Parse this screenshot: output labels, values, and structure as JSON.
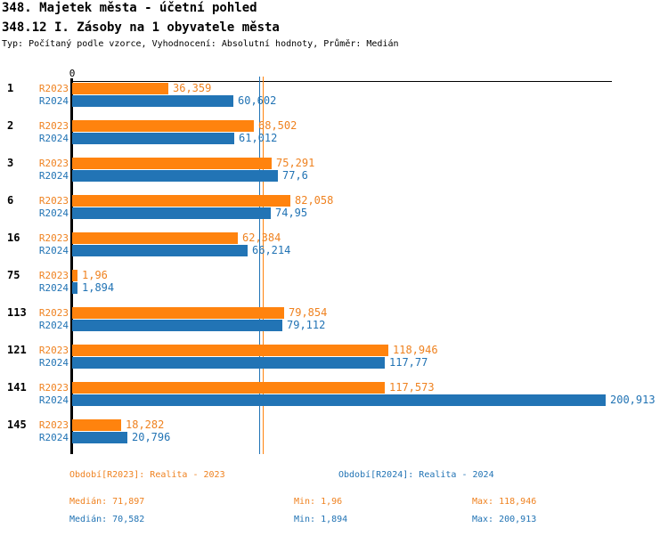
{
  "header": {
    "title": "348. Majetek města - účetní pohled",
    "subtitle": "348.12 I. Zásoby na 1 obyvatele města",
    "meta": "Typ: Počítaný podle vzorce, Vyhodnocení: Absolutní hodnoty, Průměr: Medián"
  },
  "colors": {
    "orange": "#FF830E",
    "blue": "#2274B5",
    "orange_text": "#EF8220",
    "blue_text": "#2173B4",
    "axis": "#000000"
  },
  "chart_data": {
    "type": "bar",
    "orientation": "horizontal",
    "axis_zero_label": "0",
    "xlim": [
      0,
      200.913
    ],
    "grid": false,
    "categories": [
      "1",
      "2",
      "3",
      "6",
      "16",
      "75",
      "113",
      "121",
      "141",
      "145"
    ],
    "series": [
      {
        "name": "R2023",
        "color_key": "orange",
        "values": [
          36.359,
          68.502,
          75.291,
          82.058,
          62.384,
          1.96,
          79.854,
          118.946,
          117.573,
          18.282
        ],
        "value_labels": [
          "36,359",
          "68,502",
          "75,291",
          "82,058",
          "62,384",
          "1,96",
          "79,854",
          "118,946",
          "117,573",
          "18,282"
        ]
      },
      {
        "name": "R2024",
        "color_key": "blue",
        "values": [
          60.602,
          61.012,
          77.6,
          74.95,
          66.214,
          1.894,
          79.112,
          117.77,
          200.913,
          20.796
        ],
        "value_labels": [
          "60,602",
          "61,012",
          "77,6",
          "74,95",
          "66,214",
          "1,894",
          "79,112",
          "117,77",
          "200,913",
          "20,796"
        ]
      }
    ],
    "reference_lines": [
      {
        "name": "median-2024",
        "value": 70.582,
        "color_key": "blue"
      },
      {
        "name": "median-2023",
        "value": 71.897,
        "color_key": "orange"
      }
    ]
  },
  "footer": {
    "legend": [
      {
        "label": "Období[R2023]: Realita - 2023",
        "color_key": "orange"
      },
      {
        "label": "Období[R2024]: Realita - 2024",
        "color_key": "blue"
      }
    ],
    "stats": [
      {
        "median": "Medián: 71,897",
        "min": "Min: 1,96",
        "max": "Max: 118,946",
        "color_key": "orange"
      },
      {
        "median": "Medián: 70,582",
        "min": "Min: 1,894",
        "max": "Max: 200,913",
        "color_key": "blue"
      }
    ]
  }
}
